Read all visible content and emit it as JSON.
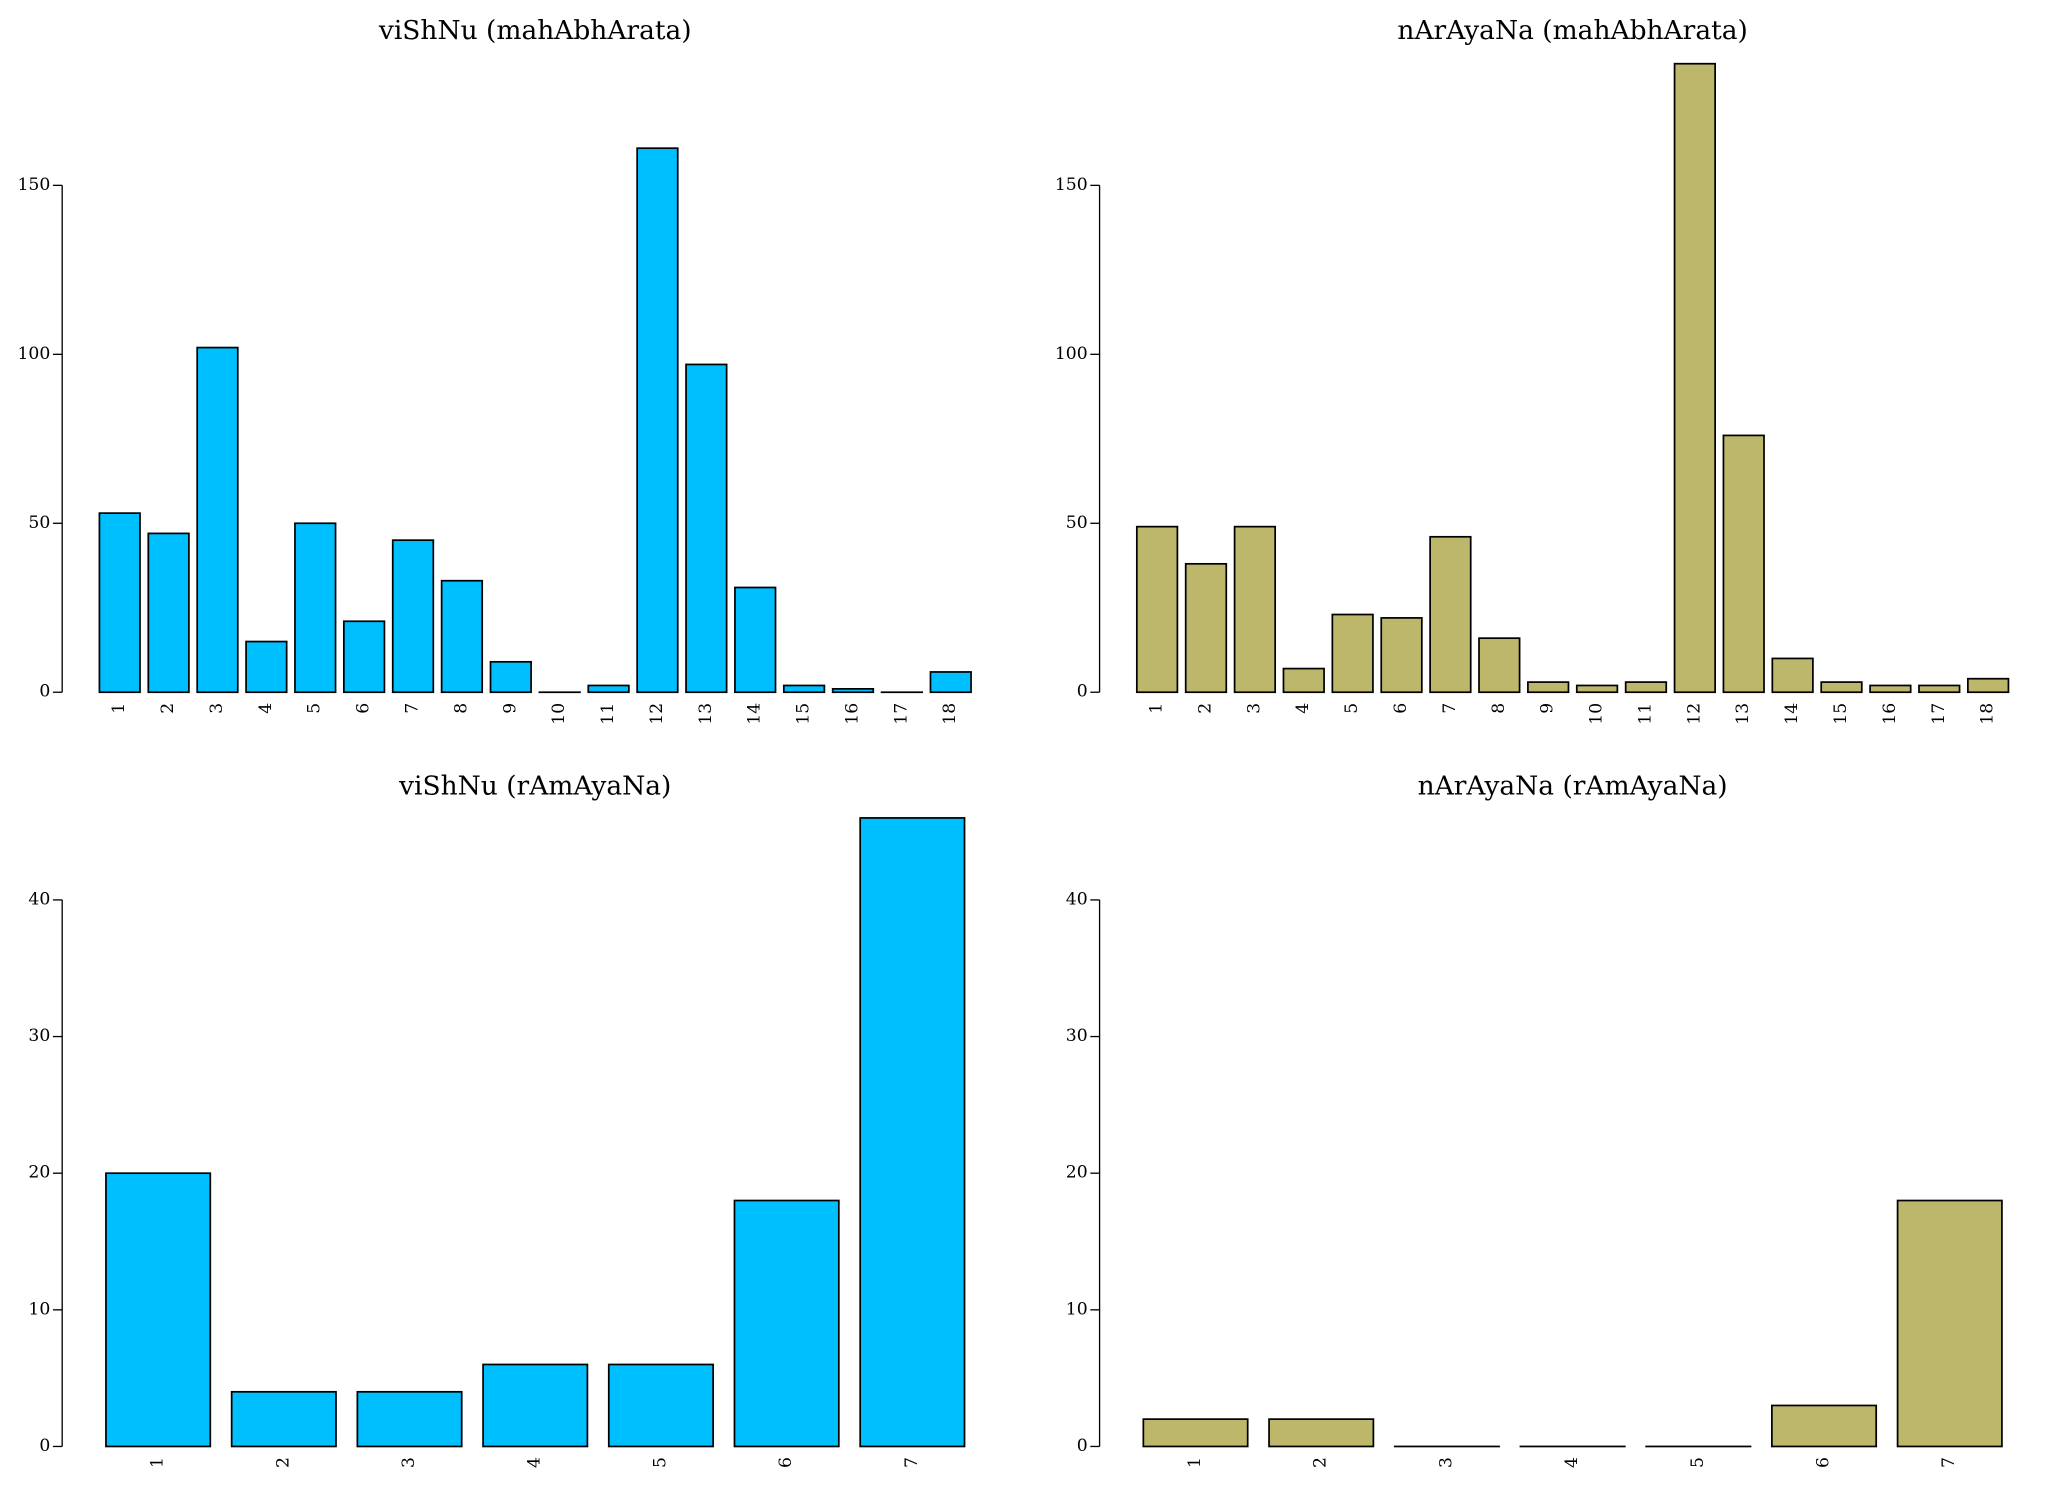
{
  "chart_data": [
    {
      "type": "bar",
      "title": "viShNu (mahAbhArata)",
      "categories": [
        "1",
        "2",
        "3",
        "4",
        "5",
        "6",
        "7",
        "8",
        "9",
        "10",
        "11",
        "12",
        "13",
        "14",
        "15",
        "16",
        "17",
        "18"
      ],
      "values": [
        53,
        47,
        102,
        15,
        50,
        21,
        45,
        33,
        9,
        0,
        2,
        161,
        97,
        31,
        2,
        1,
        0,
        6
      ],
      "color": "#00bfff",
      "ylim": [
        0,
        186
      ],
      "yticks": [
        0,
        50,
        100,
        150
      ]
    },
    {
      "type": "bar",
      "title": "nArAyaNa (mahAbhArata)",
      "categories": [
        "1",
        "2",
        "3",
        "4",
        "5",
        "6",
        "7",
        "8",
        "9",
        "10",
        "11",
        "12",
        "13",
        "14",
        "15",
        "16",
        "17",
        "18"
      ],
      "values": [
        49,
        38,
        49,
        7,
        23,
        22,
        46,
        16,
        3,
        2,
        3,
        186,
        76,
        10,
        3,
        2,
        2,
        4
      ],
      "color": "#bdb76b",
      "ylim": [
        0,
        186
      ],
      "yticks": [
        0,
        50,
        100,
        150
      ]
    },
    {
      "type": "bar",
      "title": "viShNu (rAmAyaNa)",
      "categories": [
        "1",
        "2",
        "3",
        "4",
        "5",
        "6",
        "7"
      ],
      "values": [
        20,
        4,
        4,
        6,
        6,
        18,
        46
      ],
      "color": "#00bfff",
      "ylim": [
        0,
        46
      ],
      "yticks": [
        0,
        10,
        20,
        30,
        40
      ]
    },
    {
      "type": "bar",
      "title": "nArAyaNa (rAmAyaNa)",
      "categories": [
        "1",
        "2",
        "3",
        "4",
        "5",
        "6",
        "7"
      ],
      "values": [
        2,
        2,
        0,
        0,
        0,
        3,
        18
      ],
      "color": "#bdb76b",
      "ylim": [
        0,
        46
      ],
      "yticks": [
        0,
        10,
        20,
        30,
        40
      ]
    }
  ]
}
